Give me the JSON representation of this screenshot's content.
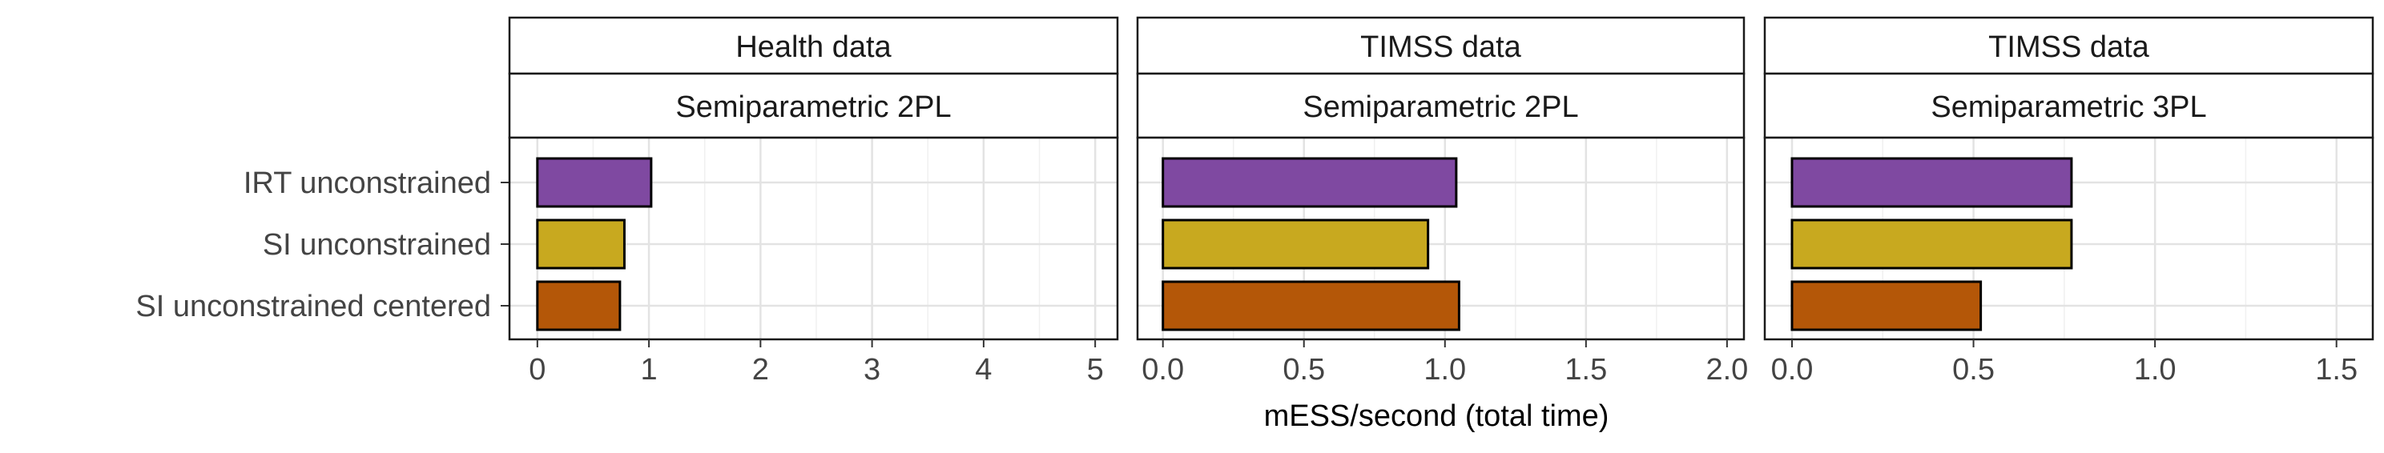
{
  "chart_data": {
    "type": "bar",
    "orientation": "horizontal",
    "xlabel": "mESS/second (total time)",
    "categories": [
      "IRT unconstrained",
      "SI unconstrained",
      "SI unconstrained centered"
    ],
    "colors": [
      "#7f49a1",
      "#c8a91f",
      "#b45708"
    ],
    "bar_outline": "#000000",
    "grid": true,
    "legend": "none",
    "panels": [
      {
        "strip_top": "Health data",
        "strip_bottom": "Semiparametric 2PL",
        "xlim": [
          -0.25,
          5.2
        ],
        "xticks": [
          0,
          1,
          2,
          3,
          4,
          5
        ],
        "xtick_labels": [
          "0",
          "1",
          "2",
          "3",
          "4",
          "5"
        ],
        "values": [
          1.02,
          0.78,
          0.74
        ]
      },
      {
        "strip_top": "TIMSS data",
        "strip_bottom": "Semiparametric 2PL",
        "xlim": [
          -0.09,
          2.06
        ],
        "xticks": [
          0,
          0.5,
          1,
          1.5,
          2
        ],
        "xtick_labels": [
          "0.0",
          "0.5",
          "1.0",
          "1.5",
          "2.0"
        ],
        "values": [
          1.04,
          0.94,
          1.05
        ]
      },
      {
        "strip_top": "TIMSS data",
        "strip_bottom": "Semiparametric 3PL",
        "xlim": [
          -0.075,
          1.6
        ],
        "xticks": [
          0,
          0.5,
          1,
          1.5
        ],
        "xtick_labels": [
          "0.0",
          "0.5",
          "1.0",
          "1.5"
        ],
        "values": [
          0.77,
          0.77,
          0.52
        ]
      }
    ]
  }
}
